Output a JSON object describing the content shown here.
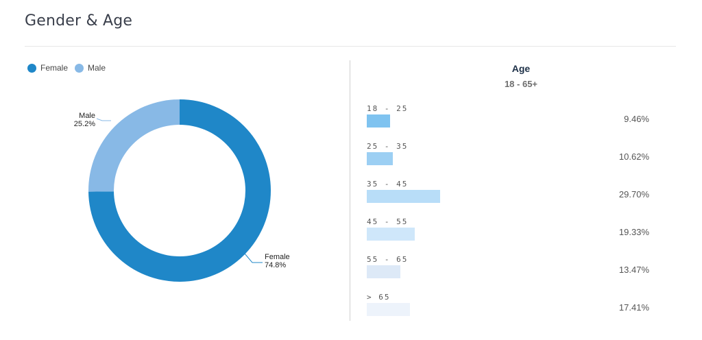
{
  "header": {
    "title": "Gender & Age"
  },
  "legend": [
    {
      "label": "Female",
      "color": "#1f87c8"
    },
    {
      "label": "Male",
      "color": "#88b9e6"
    }
  ],
  "chart_data": [
    {
      "type": "pie",
      "title": "",
      "categories": [
        "Female",
        "Male"
      ],
      "values": [
        74.8,
        25.2
      ],
      "colors": [
        "#1f87c8",
        "#88b9e6"
      ],
      "slice_labels": [
        {
          "name": "Female",
          "value": "74.8%"
        },
        {
          "name": "Male",
          "value": "25.2%"
        }
      ],
      "legend_position": "top-left",
      "donut": true
    },
    {
      "type": "bar",
      "orientation": "horizontal",
      "title": "Age",
      "subtitle": "18 - 65+",
      "categories": [
        "18 - 25",
        "25 - 35",
        "35 - 45",
        "45 - 55",
        "55 - 65",
        "> 65"
      ],
      "values": [
        9.46,
        10.62,
        29.7,
        19.33,
        13.47,
        17.41
      ],
      "value_labels": [
        "9.46%",
        "10.62%",
        "29.70%",
        "19.33%",
        "13.47%",
        "17.41%"
      ],
      "colors": [
        "#7fc3f0",
        "#9ccff3",
        "#b8ddf8",
        "#cfe7fa",
        "#dde9f7",
        "#edf3fb"
      ]
    }
  ]
}
